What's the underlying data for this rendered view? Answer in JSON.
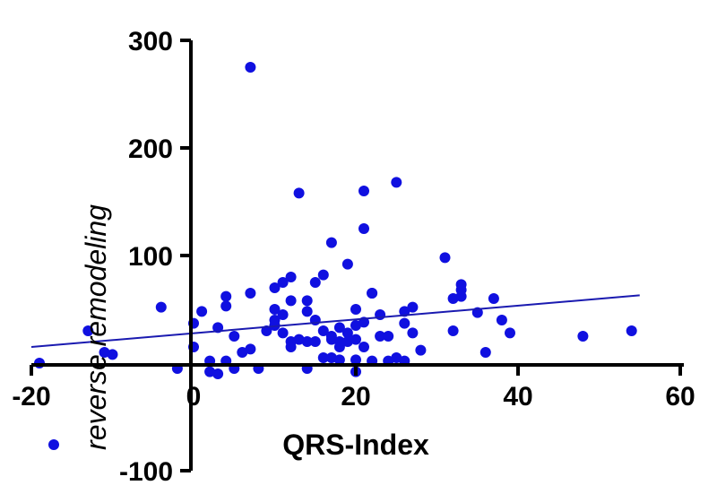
{
  "chart_data": {
    "type": "scatter",
    "title": "",
    "xlabel": "QRS-Index",
    "ylabel": "reverse remodeling",
    "xlim": [
      -20,
      60
    ],
    "ylim": [
      -100,
      300
    ],
    "x_ticks": [
      "-20",
      "0",
      "20",
      "40",
      "60"
    ],
    "y_ticks": [
      "-100",
      "0",
      "100",
      "200",
      "300"
    ],
    "grid": false,
    "colors": {
      "points": "#1010e0",
      "regression": "#1a1ab0",
      "axes": "#000000"
    },
    "series": [
      {
        "points": [
          [
            -19,
            0
          ],
          [
            -13,
            30
          ],
          [
            -11,
            10
          ],
          [
            -10,
            8
          ],
          [
            -4,
            52
          ],
          [
            -2,
            -5
          ],
          [
            0,
            37
          ],
          [
            0,
            15
          ],
          [
            1,
            48
          ],
          [
            2,
            2
          ],
          [
            2,
            -8
          ],
          [
            3,
            33
          ],
          [
            3,
            -10
          ],
          [
            4,
            53
          ],
          [
            4,
            62
          ],
          [
            4,
            2
          ],
          [
            5,
            -5
          ],
          [
            5,
            25
          ],
          [
            6,
            10
          ],
          [
            7,
            13
          ],
          [
            7,
            275
          ],
          [
            7,
            65
          ],
          [
            8,
            -5
          ],
          [
            9,
            30
          ],
          [
            10,
            40
          ],
          [
            10,
            50
          ],
          [
            10,
            70
          ],
          [
            10,
            35
          ],
          [
            11,
            75
          ],
          [
            11,
            45
          ],
          [
            11,
            28
          ],
          [
            12,
            80
          ],
          [
            12,
            58
          ],
          [
            12,
            20
          ],
          [
            12,
            15
          ],
          [
            13,
            22
          ],
          [
            13,
            158
          ],
          [
            14,
            58
          ],
          [
            14,
            48
          ],
          [
            14,
            -5
          ],
          [
            14,
            20
          ],
          [
            15,
            75
          ],
          [
            15,
            40
          ],
          [
            15,
            20
          ],
          [
            16,
            82
          ],
          [
            16,
            30
          ],
          [
            16,
            5
          ],
          [
            17,
            25
          ],
          [
            17,
            22
          ],
          [
            17,
            112
          ],
          [
            17,
            5
          ],
          [
            18,
            15
          ],
          [
            18,
            33
          ],
          [
            18,
            20
          ],
          [
            18,
            3
          ],
          [
            19,
            28
          ],
          [
            19,
            92
          ],
          [
            19,
            20
          ],
          [
            20,
            50
          ],
          [
            20,
            22
          ],
          [
            20,
            35
          ],
          [
            20,
            3
          ],
          [
            20,
            -8
          ],
          [
            21,
            125
          ],
          [
            21,
            160
          ],
          [
            21,
            38
          ],
          [
            21,
            15
          ],
          [
            22,
            65
          ],
          [
            22,
            65
          ],
          [
            22,
            2
          ],
          [
            23,
            45
          ],
          [
            23,
            25
          ],
          [
            24,
            25
          ],
          [
            24,
            2
          ],
          [
            25,
            5
          ],
          [
            25,
            168
          ],
          [
            26,
            48
          ],
          [
            26,
            2
          ],
          [
            26,
            37
          ],
          [
            27,
            52
          ],
          [
            27,
            28
          ],
          [
            28,
            12
          ],
          [
            31,
            98
          ],
          [
            32,
            30
          ],
          [
            32,
            60
          ],
          [
            33,
            73
          ],
          [
            33,
            68
          ],
          [
            33,
            62
          ],
          [
            35,
            47
          ],
          [
            36,
            10
          ],
          [
            37,
            60
          ],
          [
            38,
            40
          ],
          [
            39,
            28
          ],
          [
            48,
            25
          ],
          [
            54,
            30
          ]
        ]
      }
    ],
    "regression": {
      "x": [
        -20,
        55
      ],
      "y": [
        15,
        63
      ]
    }
  }
}
